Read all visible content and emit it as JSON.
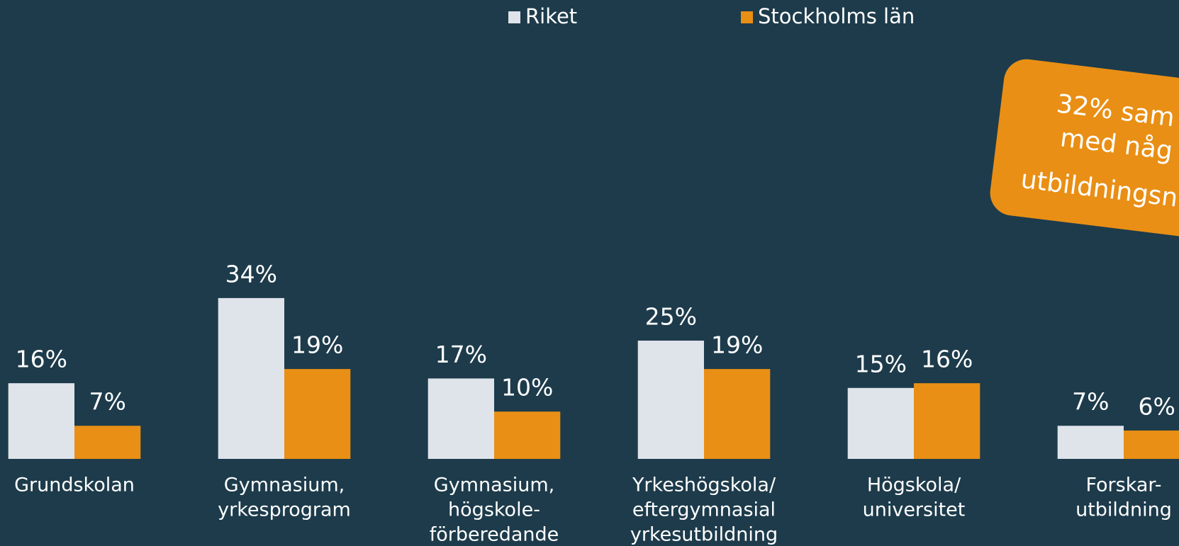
{
  "chart_data": {
    "type": "bar",
    "categories": [
      [
        "Grundskolan"
      ],
      [
        "Gymnasium,",
        "yrkesprogram"
      ],
      [
        "Gymnasium,",
        "högskole-",
        "förberedande"
      ],
      [
        "Yrkeshögskola/",
        "eftergymnasial",
        "yrkesutbildning"
      ],
      [
        "Högskola/",
        "universitet"
      ],
      [
        "Forskar-",
        "utbildning"
      ]
    ],
    "series": [
      {
        "name": "Riket",
        "color": "#dfe3ea",
        "values": [
          16,
          34,
          17,
          25,
          15,
          7
        ],
        "value_labels": [
          "16%",
          "34%",
          "17%",
          "25%",
          "15%",
          "7%"
        ]
      },
      {
        "name": "Stockholms län",
        "color": "#e98f15",
        "values": [
          7,
          19,
          10,
          19,
          16,
          6
        ],
        "value_labels": [
          "7%",
          "19%",
          "10%",
          "19%",
          "16%",
          "6%"
        ]
      }
    ],
    "annotation": {
      "lines": [
        "32% sam",
        "med någ",
        "utbildningsn"
      ],
      "color": "#e98f15"
    }
  }
}
